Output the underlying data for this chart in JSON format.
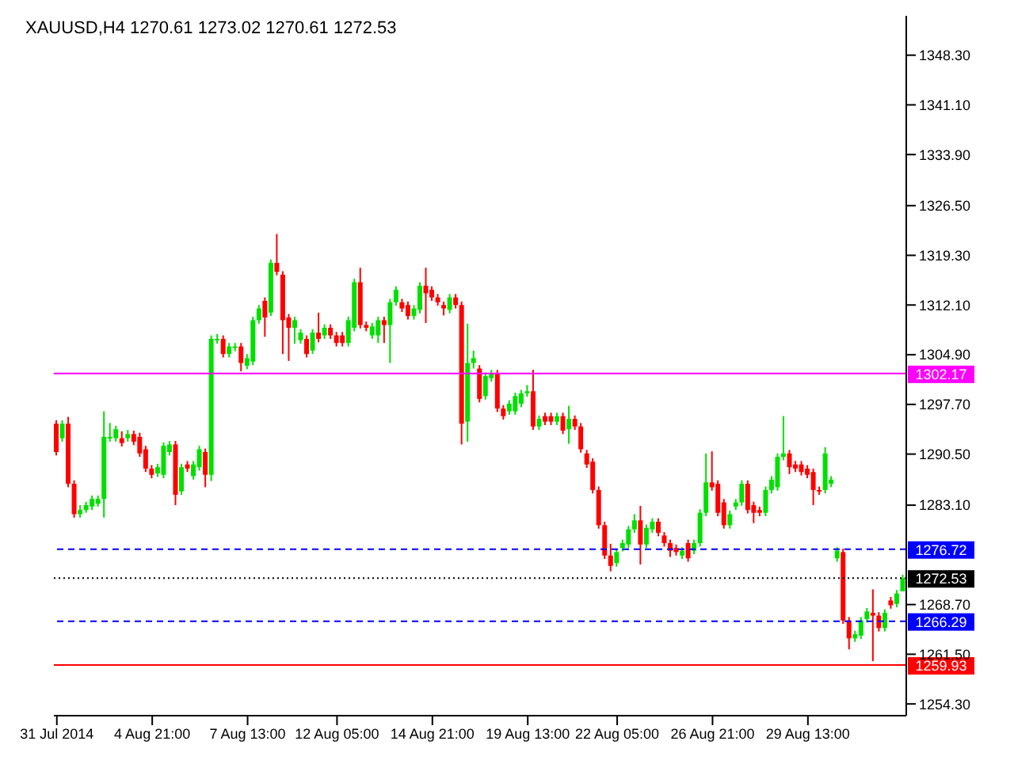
{
  "chart_data": {
    "type": "candlestick",
    "title": "XAUUSD,H4  1270.61 1273.02 1270.61 1272.53",
    "categories": [
      "31 Jul 2014",
      null,
      null,
      null,
      null,
      null,
      null,
      null,
      null,
      null,
      null,
      null,
      null,
      null,
      null,
      null,
      "4 Aug 21:00",
      null,
      null,
      null,
      null,
      null,
      null,
      null,
      null,
      null,
      null,
      null,
      null,
      null,
      null,
      null,
      "7 Aug 13:00",
      null,
      null,
      null,
      null,
      null,
      null,
      null,
      null,
      null,
      null,
      null,
      null,
      null,
      null,
      "12 Aug 05:00",
      null,
      null,
      null,
      null,
      null,
      null,
      null,
      null,
      null,
      null,
      null,
      null,
      null,
      null,
      null,
      "14 Aug 21:00",
      null,
      null,
      null,
      null,
      null,
      null,
      null,
      null,
      null,
      null,
      null,
      null,
      null,
      null,
      null,
      "19 Aug 13:00",
      null,
      null,
      null,
      null,
      null,
      null,
      null,
      null,
      null,
      null,
      null,
      null,
      null,
      null,
      "22 Aug 05:00",
      null,
      null,
      null,
      null,
      null,
      null,
      null,
      null,
      null,
      null,
      null,
      null,
      null,
      null,
      null,
      "26 Aug 21:00",
      null,
      null,
      null,
      null,
      null,
      null,
      null,
      null,
      null,
      null,
      null,
      null,
      null,
      null,
      null,
      "29 Aug 13:00",
      null,
      null,
      null,
      null,
      null,
      null,
      null,
      null,
      null,
      null,
      null,
      null,
      null,
      null,
      null,
      null
    ],
    "ohlc": [
      [
        1294.9,
        1295.4,
        1290.3,
        1290.8
      ],
      [
        1292.8,
        1295.4,
        1292.3,
        1294.9
      ],
      [
        1294.9,
        1295.9,
        1285.7,
        1286.2
      ],
      [
        1286.2,
        1286.7,
        1281.3,
        1281.8
      ],
      [
        1281.8,
        1283.1,
        1281.3,
        1282.4
      ],
      [
        1282.4,
        1283.6,
        1282.0,
        1283.1
      ],
      [
        1282.9,
        1284.5,
        1282.4,
        1284.0
      ],
      [
        1283.3,
        1284.5,
        1282.9,
        1284.0
      ],
      [
        1284.0,
        1296.7,
        1281.3,
        1293.0
      ],
      [
        1292.8,
        1295.0,
        1292.3,
        1293.0
      ],
      [
        1292.8,
        1294.6,
        1292.3,
        1294.1
      ],
      [
        1292.8,
        1293.8,
        1291.6,
        1292.1
      ],
      [
        1292.8,
        1294.0,
        1292.3,
        1293.4
      ],
      [
        1293.4,
        1293.9,
        1291.8,
        1292.3
      ],
      [
        1293.0,
        1293.6,
        1290.1,
        1290.6
      ],
      [
        1291.2,
        1291.7,
        1287.9,
        1288.4
      ],
      [
        1288.4,
        1288.9,
        1287.0,
        1287.5
      ],
      [
        1287.7,
        1289.1,
        1287.2,
        1288.6
      ],
      [
        1287.5,
        1292.2,
        1287.0,
        1291.7
      ],
      [
        1290.8,
        1292.4,
        1290.3,
        1291.9
      ],
      [
        1291.9,
        1292.4,
        1283.1,
        1284.6
      ],
      [
        1285.1,
        1289.1,
        1284.6,
        1288.6
      ],
      [
        1289.0,
        1289.5,
        1287.9,
        1288.4
      ],
      [
        1287.3,
        1289.5,
        1286.8,
        1289.0
      ],
      [
        1288.6,
        1291.7,
        1288.1,
        1291.2
      ],
      [
        1290.8,
        1291.3,
        1285.7,
        1287.5
      ],
      [
        1287.5,
        1307.7,
        1286.6,
        1307.2
      ],
      [
        1307.0,
        1307.9,
        1306.5,
        1307.2
      ],
      [
        1307.2,
        1307.7,
        1304.5,
        1305.0
      ],
      [
        1305.0,
        1306.6,
        1304.5,
        1306.1
      ],
      [
        1305.9,
        1306.6,
        1305.4,
        1306.1
      ],
      [
        1306.1,
        1306.6,
        1302.5,
        1303.7
      ],
      [
        1303.3,
        1305.0,
        1302.8,
        1304.4
      ],
      [
        1303.9,
        1310.4,
        1303.4,
        1309.9
      ],
      [
        1309.9,
        1312.1,
        1309.4,
        1311.6
      ],
      [
        1312.7,
        1313.2,
        1307.5,
        1310.3
      ],
      [
        1311.0,
        1318.7,
        1310.5,
        1318.2
      ],
      [
        1318.2,
        1322.4,
        1316.4,
        1316.9
      ],
      [
        1316.5,
        1317.0,
        1305.0,
        1309.9
      ],
      [
        1310.3,
        1310.8,
        1304.0,
        1308.8
      ],
      [
        1308.8,
        1310.4,
        1306.5,
        1309.9
      ],
      [
        1307.0,
        1308.6,
        1306.5,
        1308.1
      ],
      [
        1307.2,
        1307.7,
        1304.5,
        1305.0
      ],
      [
        1305.5,
        1308.6,
        1305.0,
        1308.1
      ],
      [
        1308.1,
        1311.0,
        1306.7,
        1307.2
      ],
      [
        1307.7,
        1309.3,
        1307.2,
        1308.8
      ],
      [
        1308.8,
        1309.3,
        1307.2,
        1307.7
      ],
      [
        1307.7,
        1308.2,
        1306.1,
        1306.6
      ],
      [
        1307.7,
        1308.2,
        1306.1,
        1306.6
      ],
      [
        1306.6,
        1310.4,
        1306.1,
        1309.9
      ],
      [
        1308.8,
        1315.9,
        1308.3,
        1315.4
      ],
      [
        1315.4,
        1317.5,
        1308.7,
        1309.2
      ],
      [
        1309.2,
        1309.7,
        1308.3,
        1308.8
      ],
      [
        1307.7,
        1309.5,
        1307.2,
        1309.0
      ],
      [
        1307.7,
        1310.4,
        1306.6,
        1309.9
      ],
      [
        1309.9,
        1310.4,
        1306.6,
        1309.2
      ],
      [
        1309.2,
        1313.0,
        1303.7,
        1312.5
      ],
      [
        1312.5,
        1314.8,
        1312.0,
        1314.3
      ],
      [
        1312.5,
        1313.0,
        1311.1,
        1311.6
      ],
      [
        1312.1,
        1312.6,
        1310.0,
        1310.5
      ],
      [
        1310.5,
        1312.1,
        1310.0,
        1311.6
      ],
      [
        1311.4,
        1315.4,
        1310.9,
        1314.9
      ],
      [
        1314.9,
        1317.5,
        1309.5,
        1313.8
      ],
      [
        1314.3,
        1314.8,
        1312.7,
        1313.2
      ],
      [
        1313.2,
        1313.7,
        1312.0,
        1312.5
      ],
      [
        1312.1,
        1312.6,
        1310.6,
        1311.6
      ],
      [
        1311.4,
        1313.7,
        1310.9,
        1313.2
      ],
      [
        1313.2,
        1313.7,
        1311.6,
        1312.1
      ],
      [
        1312.1,
        1312.6,
        1291.9,
        1294.9
      ],
      [
        1295.2,
        1309.4,
        1292.3,
        1303.7
      ],
      [
        1303.7,
        1305.5,
        1302.9,
        1304.4
      ],
      [
        1302.9,
        1303.4,
        1298.0,
        1298.5
      ],
      [
        1298.9,
        1302.3,
        1298.4,
        1301.8
      ],
      [
        1301.5,
        1302.7,
        1301.0,
        1302.2
      ],
      [
        1302.2,
        1302.7,
        1296.6,
        1297.1
      ],
      [
        1297.1,
        1297.6,
        1295.5,
        1296.0
      ],
      [
        1296.7,
        1298.3,
        1296.2,
        1297.8
      ],
      [
        1296.7,
        1299.4,
        1296.2,
        1298.9
      ],
      [
        1297.8,
        1299.8,
        1297.3,
        1299.3
      ],
      [
        1299.3,
        1300.5,
        1298.8,
        1299.6
      ],
      [
        1299.6,
        1302.7,
        1294.0,
        1294.5
      ],
      [
        1294.5,
        1296.1,
        1294.0,
        1295.6
      ],
      [
        1296.0,
        1296.5,
        1294.7,
        1295.2
      ],
      [
        1296.0,
        1296.5,
        1294.7,
        1295.2
      ],
      [
        1295.2,
        1296.5,
        1294.7,
        1296.0
      ],
      [
        1296.0,
        1296.5,
        1293.4,
        1293.9
      ],
      [
        1294.1,
        1297.5,
        1292.0,
        1295.6
      ],
      [
        1295.6,
        1296.1,
        1294.0,
        1294.5
      ],
      [
        1294.5,
        1295.0,
        1290.7,
        1291.2
      ],
      [
        1290.6,
        1291.1,
        1288.5,
        1289.0
      ],
      [
        1289.4,
        1289.9,
        1284.8,
        1285.3
      ],
      [
        1285.3,
        1285.8,
        1279.7,
        1280.2
      ],
      [
        1280.2,
        1280.7,
        1275.3,
        1275.8
      ],
      [
        1275.8,
        1277.5,
        1273.5,
        1274.3
      ],
      [
        1274.7,
        1276.8,
        1274.2,
        1276.3
      ],
      [
        1276.9,
        1278.1,
        1276.4,
        1277.6
      ],
      [
        1277.4,
        1280.1,
        1276.9,
        1279.6
      ],
      [
        1279.6,
        1281.8,
        1279.1,
        1280.9
      ],
      [
        1280.9,
        1283.0,
        1274.5,
        1277.4
      ],
      [
        1277.4,
        1280.3,
        1276.9,
        1279.8
      ],
      [
        1279.6,
        1281.2,
        1279.1,
        1280.7
      ],
      [
        1280.7,
        1281.2,
        1278.6,
        1279.1
      ],
      [
        1278.7,
        1279.2,
        1277.1,
        1277.6
      ],
      [
        1277.6,
        1278.1,
        1275.6,
        1276.5
      ],
      [
        1276.9,
        1277.4,
        1275.8,
        1276.3
      ],
      [
        1275.8,
        1277.0,
        1275.3,
        1276.5
      ],
      [
        1277.6,
        1278.1,
        1274.9,
        1275.4
      ],
      [
        1276.5,
        1278.1,
        1276.0,
        1277.6
      ],
      [
        1277.6,
        1282.5,
        1277.1,
        1282.0
      ],
      [
        1282.0,
        1290.6,
        1281.5,
        1286.4
      ],
      [
        1286.4,
        1290.9,
        1285.2,
        1285.7
      ],
      [
        1286.2,
        1286.7,
        1281.5,
        1282.0
      ],
      [
        1283.5,
        1284.0,
        1279.7,
        1280.2
      ],
      [
        1280.2,
        1282.3,
        1279.7,
        1281.8
      ],
      [
        1282.9,
        1284.0,
        1282.4,
        1283.5
      ],
      [
        1283.5,
        1286.7,
        1283.0,
        1286.2
      ],
      [
        1286.2,
        1286.7,
        1281.9,
        1282.4
      ],
      [
        1283.1,
        1283.6,
        1280.5,
        1282.0
      ],
      [
        1282.4,
        1282.9,
        1281.5,
        1282.0
      ],
      [
        1282.0,
        1285.8,
        1281.5,
        1285.3
      ],
      [
        1285.3,
        1287.3,
        1284.8,
        1286.8
      ],
      [
        1285.7,
        1290.6,
        1285.2,
        1290.1
      ],
      [
        1290.1,
        1296.0,
        1289.6,
        1290.6
      ],
      [
        1290.6,
        1291.1,
        1287.6,
        1288.6
      ],
      [
        1289.0,
        1289.5,
        1287.9,
        1288.4
      ],
      [
        1289.0,
        1289.5,
        1287.4,
        1287.9
      ],
      [
        1288.4,
        1288.9,
        1287.0,
        1287.5
      ],
      [
        1287.9,
        1288.4,
        1283.1,
        1285.3
      ],
      [
        1285.3,
        1285.8,
        1284.6,
        1285.1
      ],
      [
        1285.3,
        1291.5,
        1284.8,
        1290.6
      ],
      [
        1286.2,
        1287.3,
        1285.7,
        1286.8
      ],
      [
        1275.4,
        1277.0,
        1274.9,
        1276.5
      ],
      [
        1276.3,
        1276.8,
        1265.9,
        1266.4
      ],
      [
        1266.4,
        1266.9,
        1262.2,
        1263.8
      ],
      [
        1263.8,
        1264.9,
        1263.3,
        1264.4
      ],
      [
        1264.2,
        1266.9,
        1263.7,
        1266.4
      ],
      [
        1266.6,
        1268.2,
        1266.1,
        1267.7
      ],
      [
        1267.5,
        1270.9,
        1260.5,
        1267.1
      ],
      [
        1267.1,
        1267.6,
        1264.8,
        1265.3
      ],
      [
        1265.3,
        1268.0,
        1264.8,
        1267.5
      ],
      [
        1269.3,
        1269.8,
        1268.1,
        1268.6
      ],
      [
        1268.8,
        1270.8,
        1268.3,
        1270.3
      ],
      [
        1270.61,
        1273.02,
        1270.61,
        1272.53
      ]
    ],
    "colors": [
      "#ff0000",
      "#00e000",
      "#ff0000",
      "#ff0000",
      "#00e000",
      "#00e000",
      "#00e000",
      "#00e000",
      "#00e000",
      "#00e000",
      "#00e000",
      "#ff0000",
      "#00e000",
      "#ff0000",
      "#ff0000",
      "#ff0000",
      "#ff0000",
      "#00e000",
      "#00e000",
      "#00e000",
      "#ff0000",
      "#00e000",
      "#ff0000",
      "#00e000",
      "#00e000",
      "#ff0000",
      "#00e000",
      "#00e000",
      "#ff0000",
      "#00e000",
      "#00e000",
      "#ff0000",
      "#00e000",
      "#00e000",
      "#00e000",
      "#ff0000",
      "#00e000",
      "#ff0000",
      "#ff0000",
      "#ff0000",
      "#00e000",
      "#00e000",
      "#ff0000",
      "#00e000",
      "#ff0000",
      "#00e000",
      "#ff0000",
      "#ff0000",
      "#ff0000",
      "#00e000",
      "#00e000",
      "#ff0000",
      "#ff0000",
      "#00e000",
      "#00e000",
      "#ff0000",
      "#00e000",
      "#00e000",
      "#ff0000",
      "#ff0000",
      "#00e000",
      "#00e000",
      "#ff0000",
      "#ff0000",
      "#ff0000",
      "#ff0000",
      "#00e000",
      "#ff0000",
      "#ff0000",
      "#00e000",
      "#00e000",
      "#ff0000",
      "#00e000",
      "#00e000",
      "#ff0000",
      "#ff0000",
      "#00e000",
      "#00e000",
      "#00e000",
      "#00e000",
      "#ff0000",
      "#00e000",
      "#ff0000",
      "#ff0000",
      "#00e000",
      "#ff0000",
      "#00e000",
      "#ff0000",
      "#ff0000",
      "#ff0000",
      "#ff0000",
      "#ff0000",
      "#ff0000",
      "#ff0000",
      "#00e000",
      "#00e000",
      "#00e000",
      "#00e000",
      "#ff0000",
      "#00e000",
      "#00e000",
      "#ff0000",
      "#ff0000",
      "#ff0000",
      "#ff0000",
      "#00e000",
      "#ff0000",
      "#00e000",
      "#00e000",
      "#00e000",
      "#ff0000",
      "#ff0000",
      "#ff0000",
      "#00e000",
      "#00e000",
      "#00e000",
      "#ff0000",
      "#ff0000",
      "#ff0000",
      "#00e000",
      "#00e000",
      "#00e000",
      "#00e000",
      "#ff0000",
      "#ff0000",
      "#ff0000",
      "#ff0000",
      "#ff0000",
      "#ff0000",
      "#00e000",
      "#00e000",
      "#00e000",
      "#ff0000",
      "#ff0000",
      "#00e000",
      "#00e000",
      "#00e000",
      "#ff0000",
      "#ff0000",
      "#00e000",
      "#ff0000",
      "#00e000",
      "#00e000"
    ],
    "ylim": [
      1252.6,
      1354.0
    ],
    "yticks": [
      {
        "value": 1254.3,
        "label": "1254.30"
      },
      {
        "value": 1261.5,
        "label": "1261.50"
      },
      {
        "value": 1268.7,
        "label": "1268.70"
      },
      {
        "value": 1283.1,
        "label": "1283.10"
      },
      {
        "value": 1290.5,
        "label": "1290.50"
      },
      {
        "value": 1297.7,
        "label": "1297.70"
      },
      {
        "value": 1304.9,
        "label": "1304.90"
      },
      {
        "value": 1312.1,
        "label": "1312.10"
      },
      {
        "value": 1319.3,
        "label": "1319.30"
      },
      {
        "value": 1326.5,
        "label": "1326.50"
      },
      {
        "value": 1333.9,
        "label": "1333.90"
      },
      {
        "value": 1341.1,
        "label": "1341.10"
      },
      {
        "value": 1348.3,
        "label": "1348.30"
      }
    ],
    "ref_lines": [
      {
        "axis": "y",
        "value": 1302.17,
        "label": "1302.17",
        "color": "#ff00ff",
        "line_style": "solid"
      },
      {
        "axis": "y",
        "value": 1276.72,
        "label": "1276.72",
        "color": "#0000ff",
        "line_style": "dashed"
      },
      {
        "axis": "y",
        "value": 1272.53,
        "label": "1272.53",
        "color": "#000000",
        "line_style": "dotted"
      },
      {
        "axis": "y",
        "value": 1266.29,
        "label": "1266.29",
        "color": "#0000ff",
        "line_style": "dashed"
      },
      {
        "axis": "y",
        "value": 1259.93,
        "label": "1259.93",
        "color": "#ff0000",
        "line_style": "solid"
      }
    ]
  }
}
